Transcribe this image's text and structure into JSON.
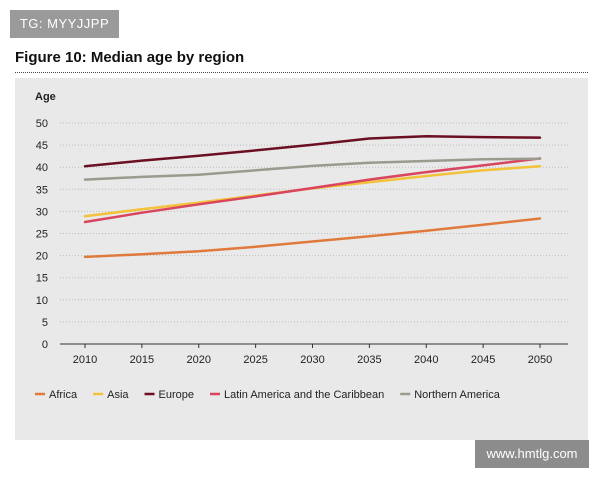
{
  "watermark_top": "TG: MYYJJPP",
  "watermark_bottom": "www.hmtlg.com",
  "chart_data": {
    "type": "line",
    "title": "Figure 10: Median age by region",
    "ylabel": "Age",
    "xlabel": "",
    "x": [
      2010,
      2015,
      2020,
      2025,
      2030,
      2035,
      2040,
      2045,
      2050
    ],
    "xlim": [
      2010,
      2050
    ],
    "ylim": [
      0,
      50
    ],
    "yticks": [
      0,
      5,
      10,
      15,
      20,
      25,
      30,
      35,
      40,
      45,
      50
    ],
    "grid": true,
    "legend": "bottom",
    "series": [
      {
        "name": "Africa",
        "color": "#e07a3c",
        "values": [
          19.7,
          20.3,
          21.0,
          22.0,
          23.2,
          24.4,
          25.6,
          27.0,
          28.4
        ]
      },
      {
        "name": "Asia",
        "color": "#f2c23a",
        "values": [
          28.9,
          30.5,
          32.0,
          33.6,
          35.2,
          36.6,
          38.0,
          39.3,
          40.2
        ]
      },
      {
        "name": "Europe",
        "color": "#6b0f22",
        "values": [
          40.2,
          41.5,
          42.6,
          43.8,
          45.1,
          46.5,
          47.0,
          46.8,
          46.7
        ]
      },
      {
        "name": "Latin America and the Caribbean",
        "color": "#d9455f",
        "values": [
          27.6,
          29.7,
          31.6,
          33.4,
          35.3,
          37.2,
          38.9,
          40.4,
          42.0
        ]
      },
      {
        "name": "Northern America",
        "color": "#9a9a8e",
        "values": [
          37.2,
          37.8,
          38.3,
          39.3,
          40.3,
          41.0,
          41.4,
          41.8,
          41.9
        ]
      }
    ]
  }
}
